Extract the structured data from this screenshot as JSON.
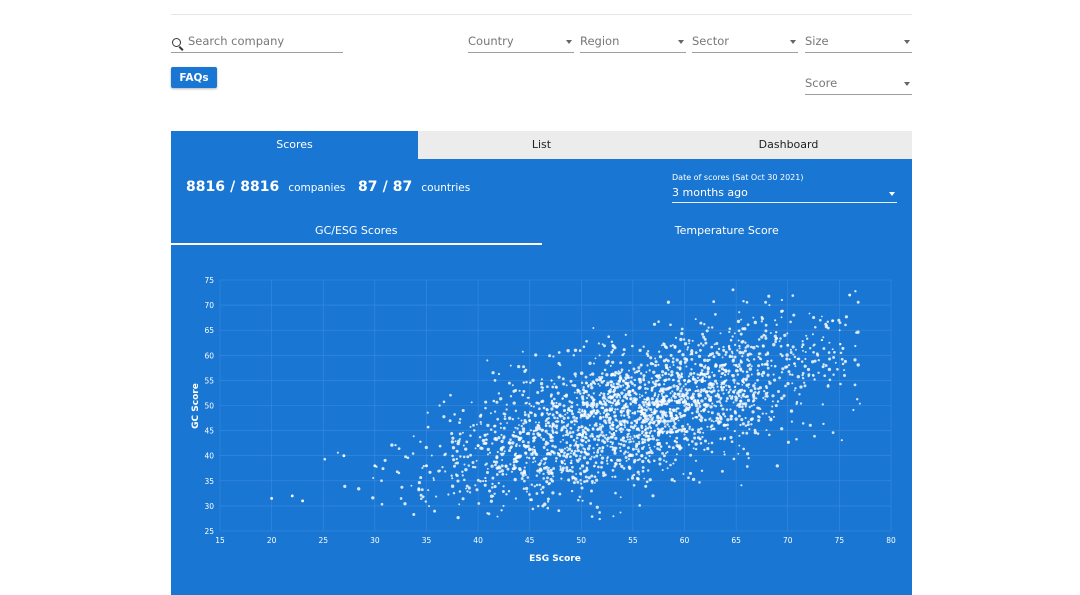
{
  "filters": {
    "search_placeholder": "Search company",
    "country": "Country",
    "region": "Region",
    "sector": "Sector",
    "size": "Size",
    "score": "Score"
  },
  "faq_label": "FAQs",
  "tabs": [
    {
      "label": "Scores",
      "active": true
    },
    {
      "label": "List",
      "active": false
    },
    {
      "label": "Dashboard",
      "active": false
    }
  ],
  "stats": {
    "companies_shown": "8816",
    "companies_total": "8816",
    "companies_unit": "companies",
    "countries_shown": "87",
    "countries_total": "87",
    "countries_unit": "countries",
    "separator": "/"
  },
  "date": {
    "label": "Date of scores (Sat Oct 30 2021)",
    "value": "3 months ago"
  },
  "subtabs": [
    {
      "label": "GC/ESG Scores",
      "active": true
    },
    {
      "label": "Temperature Score",
      "active": false
    }
  ],
  "colors": {
    "accent": "#1976d2",
    "grid": "#3a8be0",
    "point": "#ffffff"
  },
  "chart_data": {
    "type": "scatter",
    "xlabel": "ESG Score",
    "ylabel": "GC Score",
    "xlim": [
      15,
      80
    ],
    "ylim": [
      25,
      75
    ],
    "xticks": [
      15,
      20,
      25,
      30,
      35,
      40,
      45,
      50,
      55,
      60,
      65,
      70,
      75,
      80
    ],
    "yticks": [
      25,
      30,
      35,
      40,
      45,
      50,
      55,
      60,
      65,
      70,
      75
    ],
    "grid": true,
    "n_points": 8816,
    "trend": {
      "slope": 0.56,
      "intercept": 17.5,
      "spread_y": 6.5,
      "x_center": 55,
      "x_spread": 9.5
    },
    "sample_points": [
      [
        20,
        31.5
      ],
      [
        22,
        32
      ],
      [
        23,
        31
      ],
      [
        27,
        40
      ],
      [
        30,
        38
      ],
      [
        35,
        38
      ],
      [
        40,
        42
      ],
      [
        45,
        47
      ],
      [
        50,
        48
      ],
      [
        55,
        53
      ],
      [
        60,
        55
      ],
      [
        65,
        58
      ],
      [
        70,
        62
      ],
      [
        76,
        72
      ]
    ]
  }
}
